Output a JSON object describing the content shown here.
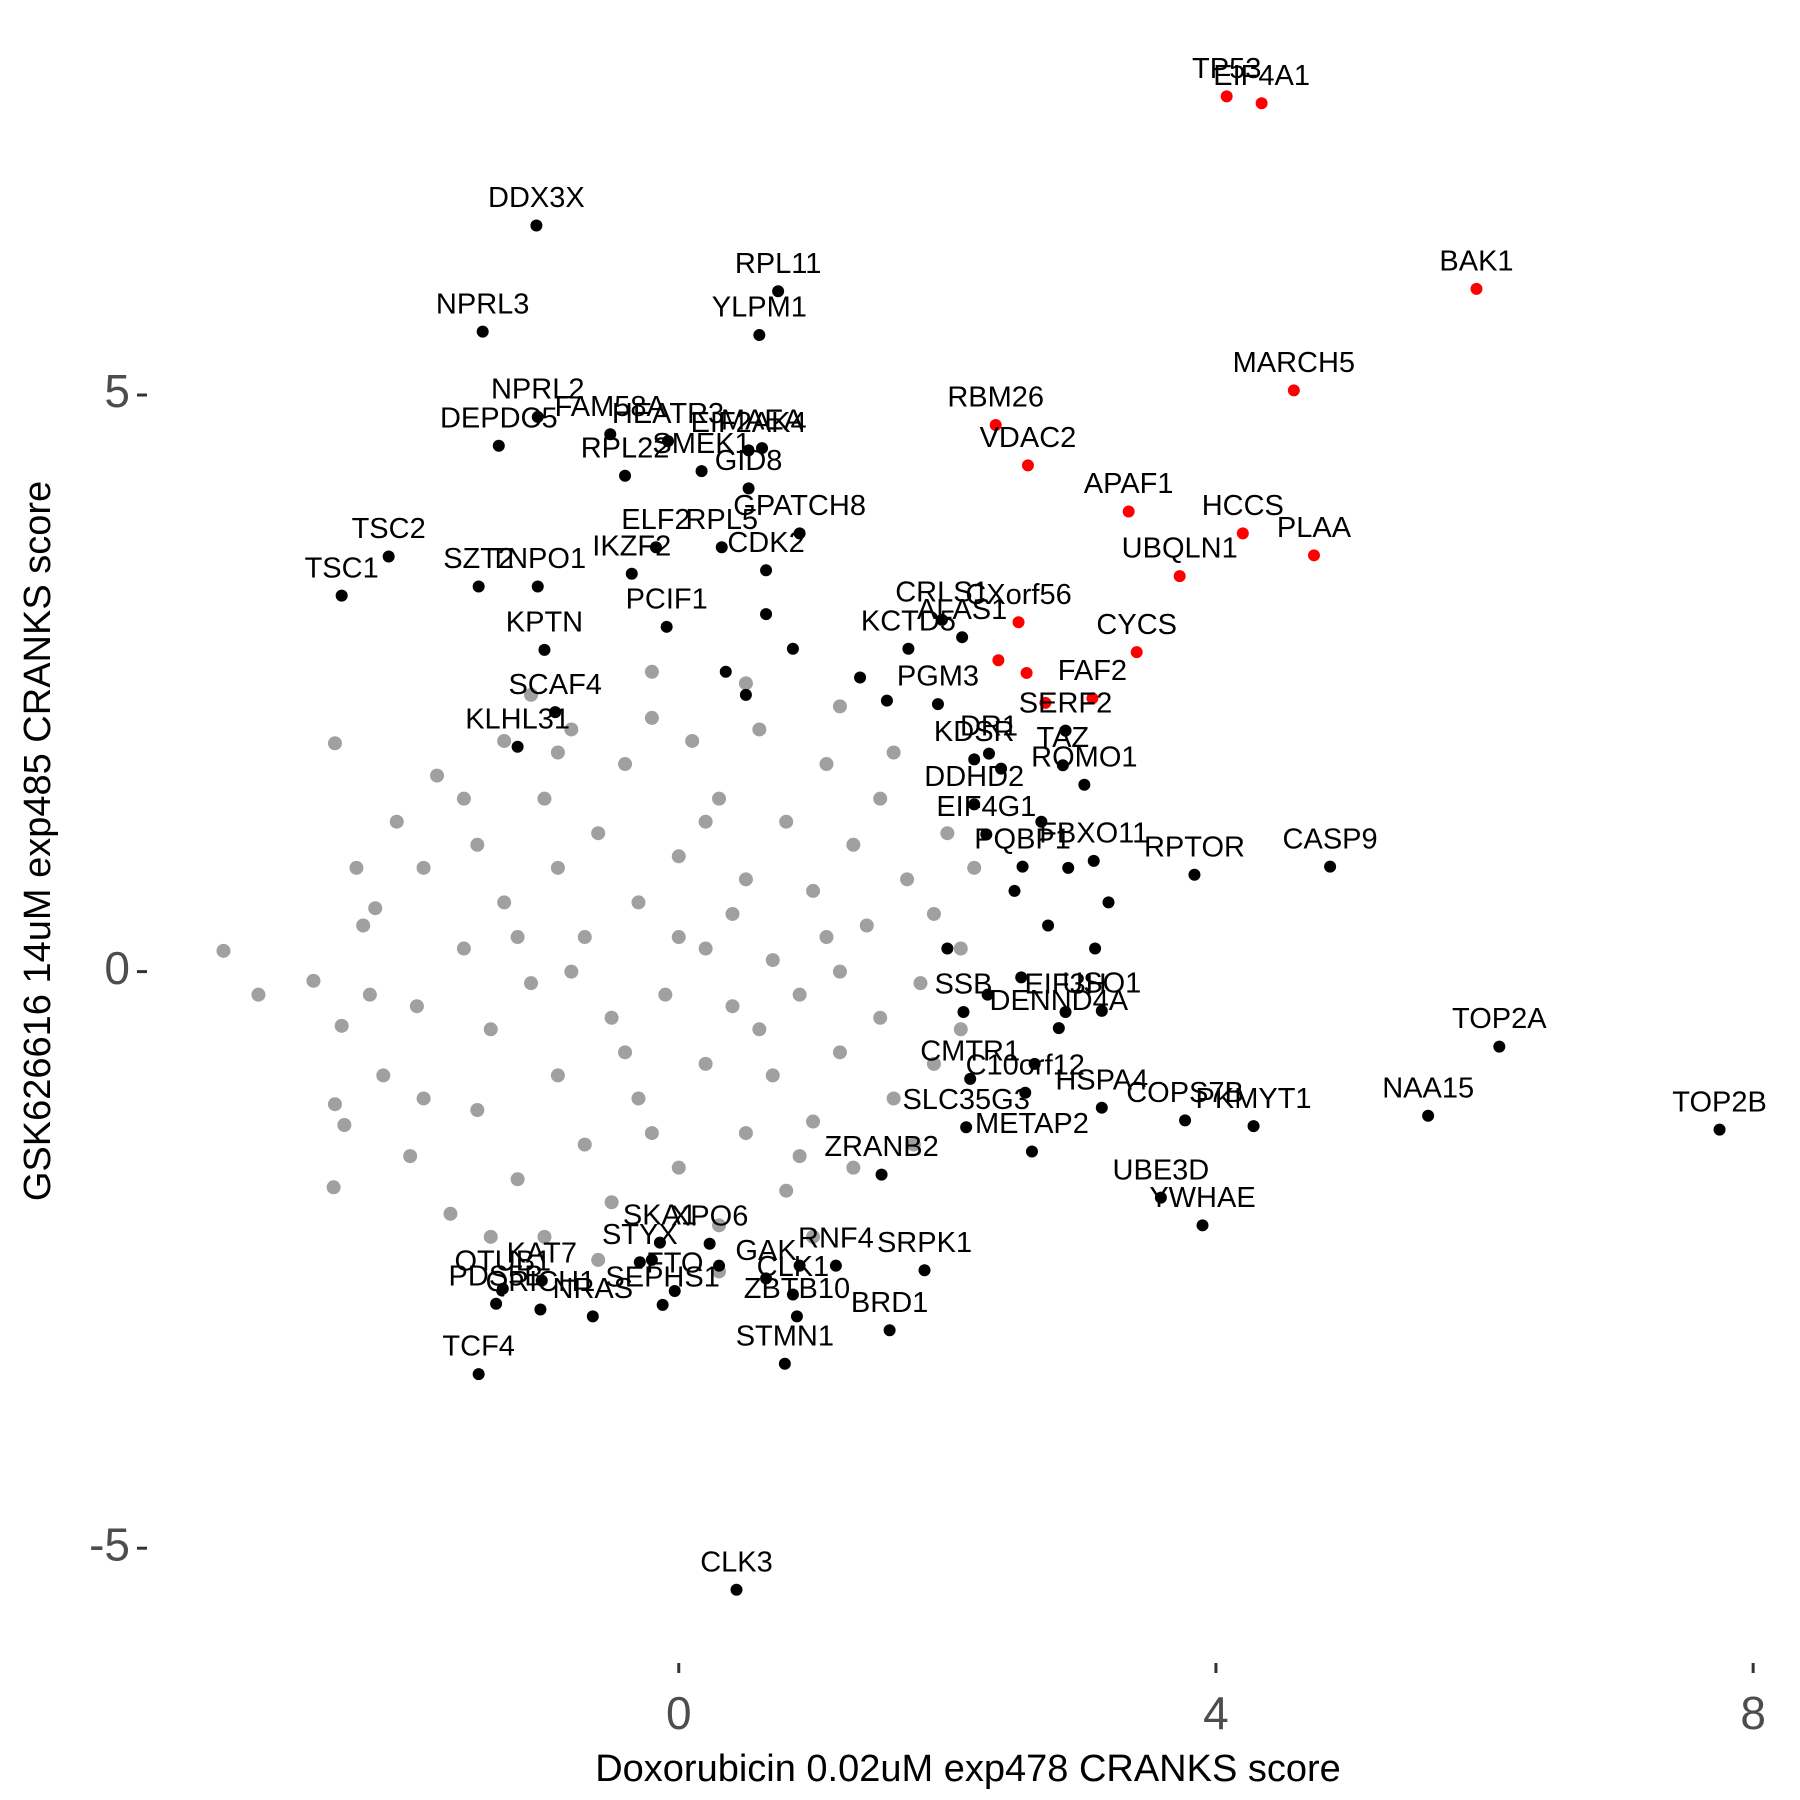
{
  "chart_data": {
    "type": "scatter",
    "xlabel": "Doxorubicin 0.02uM exp478 CRANKS score",
    "ylabel": "GSK626616 14uM exp485 CRANKS score",
    "xlim": [
      -3.9,
      8.2
    ],
    "ylim": [
      -5.9,
      8.2
    ],
    "xticks": [
      0,
      4,
      8
    ],
    "yticks": [
      -5,
      0,
      5
    ],
    "grid": false,
    "series": [
      {
        "color": "#a0a0a0",
        "x": [
          -3.39,
          -3.13,
          -2.56,
          -2.72,
          -2.51,
          -2.56,
          -2.49,
          -2.57,
          -2.26,
          -2.35,
          -2.2,
          -2.1,
          -2,
          -1.9,
          -1.95,
          -1.8,
          -1.7,
          -1.6,
          -1.5,
          -1.5,
          -1.4,
          -1.3,
          -1.3,
          -1.2,
          -1.1,
          -1,
          -1,
          -0.9,
          -0.9,
          -0.8,
          -0.7,
          -0.7,
          -0.6,
          -0.5,
          -0.5,
          -0.4,
          -0.3,
          -0.3,
          -0.2,
          -0.1,
          0,
          0,
          0.1,
          0.2,
          0.2,
          0.3,
          0.3,
          0.4,
          0.5,
          0.5,
          0.6,
          0.7,
          0.7,
          0.8,
          0.8,
          0.9,
          1,
          1,
          1.1,
          1.2,
          1.2,
          1.3,
          1.3,
          1.4,
          1.5,
          1.5,
          1.6,
          1.7,
          1.8,
          1.9,
          1.9,
          2,
          2.1,
          2.1,
          2.2,
          -0.2,
          0.5,
          1.2,
          -1.1,
          -0.6,
          0.3,
          1,
          -1.4,
          1.6,
          1.75,
          -1.9,
          -2.3,
          -2.4,
          -1.6,
          0,
          -0.4,
          0.6,
          -0.8,
          0.4,
          1.1,
          -1.2,
          -0.2,
          0.9,
          -0.9,
          0.2
        ],
        "values": [
          0.18,
          -0.2,
          1.98,
          -0.08,
          -0.47,
          -1.15,
          -1.33,
          -1.87,
          0.55,
          0.4,
          -0.9,
          1.3,
          -1.6,
          0.9,
          -0.3,
          1.7,
          -2.1,
          0.2,
          -1.2,
          1.1,
          -0.5,
          2,
          0.6,
          -1.8,
          -0.1,
          1.5,
          -2.3,
          0.9,
          -0.9,
          2.1,
          0.3,
          -1.5,
          1.2,
          -0.4,
          -2,
          1.8,
          0.6,
          -1.1,
          2.2,
          -0.2,
          1,
          -1.7,
          2,
          0.2,
          -0.8,
          1.5,
          -2.2,
          -0.3,
          0.8,
          -1.4,
          2.1,
          0.1,
          -0.9,
          1.3,
          -1.9,
          -0.2,
          0.7,
          -1.3,
          1.8,
          0,
          -0.7,
          1.1,
          -1.7,
          0.4,
          -0.4,
          1.5,
          -1.1,
          0.8,
          -0.1,
          0.5,
          -0.8,
          1.2,
          0.2,
          -0.5,
          0.9,
          2.6,
          2.5,
          2.3,
          2.4,
          -2.5,
          -2.6,
          -2.3,
          -2.3,
          1.9,
          -1.5,
          -1.1,
          -0.2,
          0.9,
          1.5,
          0.3,
          -0.7,
          -0.5,
          0,
          0.5,
          0.3,
          0.3,
          -1.4,
          -1.6,
          1.9,
          1.3
        ]
      },
      {
        "color": "#000000",
        "labels": [
          "DDX3X",
          "NPRL3",
          "RPL11",
          "YLPM1",
          "HEATR3",
          "MAEA",
          "NPRL2",
          "FAM58A",
          "DEPDC5",
          "EIF2AK4",
          "GPATCH8",
          "RPL22",
          "SMEK1",
          "GID8",
          "ELF2",
          "RPL5",
          "TSC2",
          "SZT2",
          "TSC1",
          "TNPO1",
          "IKZF2",
          "PCIF1",
          "KPTN",
          "SCAF4",
          "KLHL31",
          "ALAS1",
          "CDK2",
          "CRLS1",
          "KCTD5",
          "PGM3",
          "DR1",
          "SERF2",
          "KDSR",
          "TAZ",
          "ROMO1",
          "EIF4G1",
          "DDHD2",
          "FBXO11",
          "CASP9",
          "PQBP1",
          "RPTOR",
          "EIF3H",
          "USO1",
          "DENND4A",
          "SSB",
          "TOP2A",
          "CMTR1",
          "C10orf12",
          "COPS7B",
          "NAA15",
          "TOP2B",
          "SLC35G3",
          "METAP2",
          "HSPA4",
          "PKMYT1",
          "UBE3D",
          "YWHAE",
          "ZRANB2",
          "SKA1",
          "XPO6",
          "RNF4",
          "STYX",
          "SRPK1",
          "OTUB1",
          "KAT7",
          "FTO",
          "CLK1",
          "PDS5B",
          "QRICH1",
          "GAK",
          "BRD1",
          "SEPHS1",
          "ZBTB10",
          "STMN1",
          "TCF4",
          "NRAS",
          "CLK3",
          null,
          null,
          null,
          null,
          null,
          null,
          null,
          null,
          null,
          null,
          null,
          null,
          null,
          null,
          null,
          null,
          null,
          null,
          null,
          null
        ],
        "x": [
          -1.06,
          -1.46,
          0.74,
          0.6,
          -0.08,
          0.62,
          -1.05,
          -0.51,
          -1.34,
          0.52,
          0.9,
          -0.4,
          0.17,
          0.52,
          -0.17,
          0.32,
          -2.16,
          -1.49,
          -2.51,
          -1.05,
          -0.35,
          -0.09,
          -1,
          -0.92,
          -1.2,
          2.11,
          0.65,
          1.96,
          1.71,
          1.93,
          2.31,
          2.88,
          2.2,
          2.86,
          3.02,
          2.29,
          2.2,
          3.09,
          4.85,
          2.56,
          3.84,
          2.88,
          3.15,
          2.83,
          2.12,
          6.11,
          2.17,
          2.58,
          3.77,
          5.58,
          7.75,
          2.14,
          2.63,
          3.15,
          4.28,
          3.59,
          3.9,
          1.51,
          -0.14,
          0.23,
          1.17,
          -0.29,
          1.83,
          -1.31,
          -1.02,
          -0.03,
          0.85,
          -1.36,
          -1.03,
          0.65,
          1.57,
          -0.12,
          0.88,
          0.79,
          -1.49,
          -0.64,
          0.43,
          0.65,
          0.85,
          0.35,
          0.5,
          1.35,
          1.55,
          2.4,
          2.7,
          2.9,
          2.5,
          2.75,
          3.2,
          2,
          2.3,
          3.1,
          2.55,
          0.9,
          0.3,
          -0.2,
          2.65
        ],
        "values": [
          6.47,
          5.55,
          5.9,
          5.52,
          4.6,
          4.54,
          4.81,
          4.66,
          4.56,
          4.52,
          3.8,
          4.3,
          4.34,
          4.19,
          3.68,
          3.68,
          3.6,
          3.34,
          3.26,
          3.34,
          3.45,
          2.99,
          2.79,
          2.25,
          1.95,
          2.9,
          3.48,
          3.05,
          2.8,
          2.32,
          1.89,
          2.09,
          1.84,
          1.79,
          1.62,
          1.19,
          1.45,
          0.96,
          0.91,
          0.91,
          0.84,
          -0.35,
          -0.34,
          -0.49,
          -0.35,
          -0.65,
          -0.93,
          -1.05,
          -1.29,
          -1.25,
          -1.37,
          -1.35,
          -1.56,
          -1.18,
          -1.34,
          -1.96,
          -2.2,
          -1.76,
          -2.35,
          -2.36,
          -2.55,
          -2.52,
          -2.59,
          -2.75,
          -2.68,
          -2.77,
          -2.8,
          -2.88,
          -2.93,
          -2.66,
          -3.11,
          -2.89,
          -2.99,
          -3.4,
          -3.49,
          -2.99,
          -5.36,
          3.1,
          2.8,
          2.6,
          2.4,
          2.55,
          2.35,
          1.76,
          1.3,
          0.9,
          0.7,
          0.4,
          0.6,
          0.2,
          -0.2,
          0.2,
          -0.05,
          -2.55,
          -2.55,
          -2.5,
          -0.8
        ]
      },
      {
        "color": "#ff0000",
        "labels": [
          "TP53",
          "EIF4A1",
          "BAK1",
          "MARCH5",
          "RBM26",
          "VDAC2",
          "APAF1",
          "HCCS",
          "PLAA",
          "UBQLN1",
          "CXorf56",
          "CYCS",
          null,
          null,
          null,
          "FAF2"
        ],
        "x": [
          4.08,
          4.34,
          5.94,
          4.58,
          2.36,
          2.6,
          3.35,
          4.2,
          4.73,
          3.73,
          2.53,
          3.41,
          2.38,
          2.59,
          2.73,
          3.08
        ],
        "values": [
          7.59,
          7.53,
          5.92,
          5.04,
          4.74,
          4.39,
          3.99,
          3.8,
          3.61,
          3.43,
          3.03,
          2.77,
          2.7,
          2.59,
          2.33,
          2.37
        ]
      }
    ]
  }
}
